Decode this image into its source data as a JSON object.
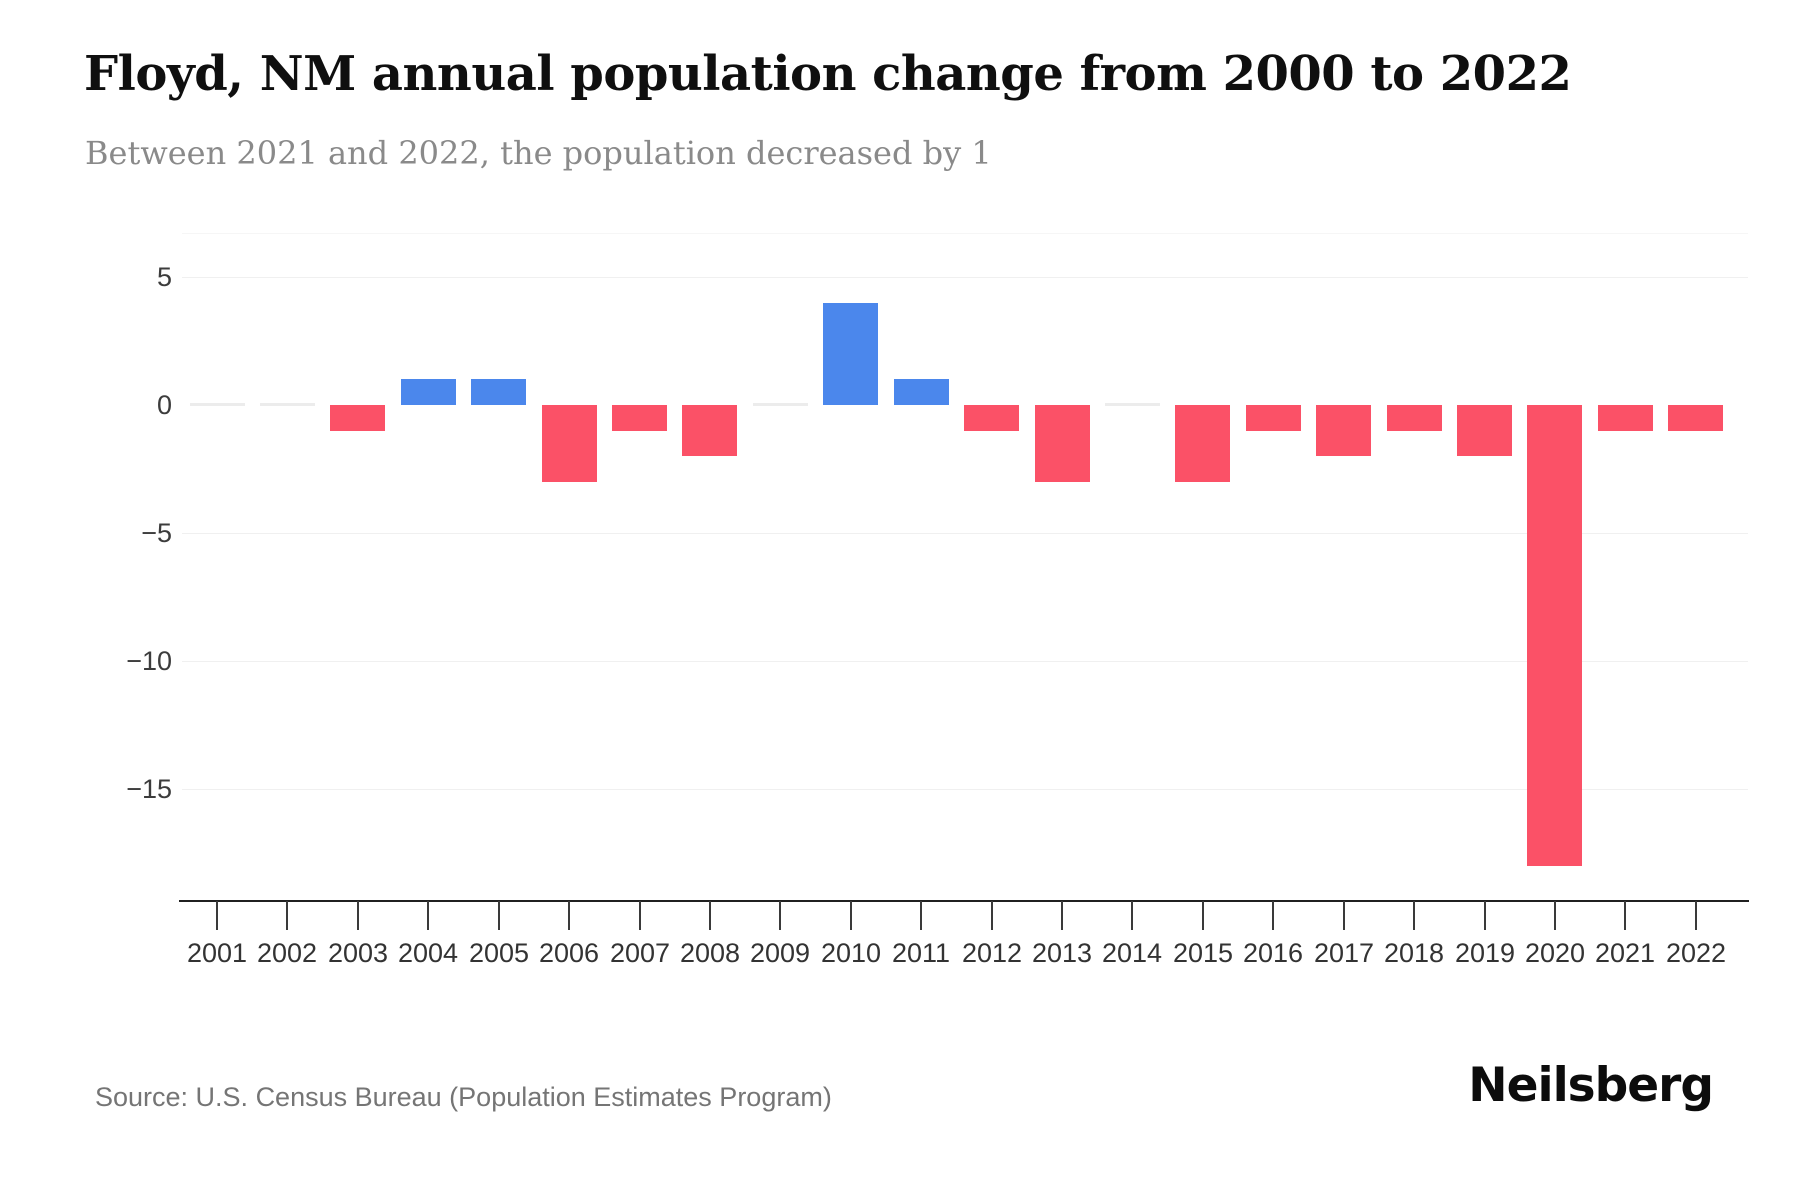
{
  "header": {
    "title": "Floyd, NM annual population change from 2000 to 2022",
    "subtitle": "Between 2021 and 2022, the population decreased by 1"
  },
  "chart_data": {
    "type": "bar",
    "title": "Floyd, NM annual population change from 2000 to 2022",
    "xlabel": "",
    "ylabel": "",
    "categories": [
      "2001",
      "2002",
      "2003",
      "2004",
      "2005",
      "2006",
      "2007",
      "2008",
      "2009",
      "2010",
      "2011",
      "2012",
      "2013",
      "2014",
      "2015",
      "2016",
      "2017",
      "2018",
      "2019",
      "2020",
      "2021",
      "2022"
    ],
    "values": [
      0,
      0,
      -1,
      1,
      1,
      -3,
      -1,
      -2,
      0,
      4,
      1,
      -1,
      -3,
      0,
      -3,
      -1,
      -2,
      -1,
      -2,
      -18,
      -1,
      -1
    ],
    "y_ticks": [
      5,
      0,
      -5,
      -10,
      -15
    ],
    "y_tick_labels": [
      "5",
      "0",
      "−5",
      "−10",
      "−15"
    ],
    "ylim": [
      -19.3,
      6.7
    ],
    "grid": "horizontal",
    "legend": "none",
    "positive_color": "#4b87ec",
    "negative_color": "#fb5167",
    "zero_color": "#ececec"
  },
  "footer": {
    "source": "Source: U.S. Census Bureau (Population Estimates Program)",
    "brand": "Neilsberg"
  }
}
